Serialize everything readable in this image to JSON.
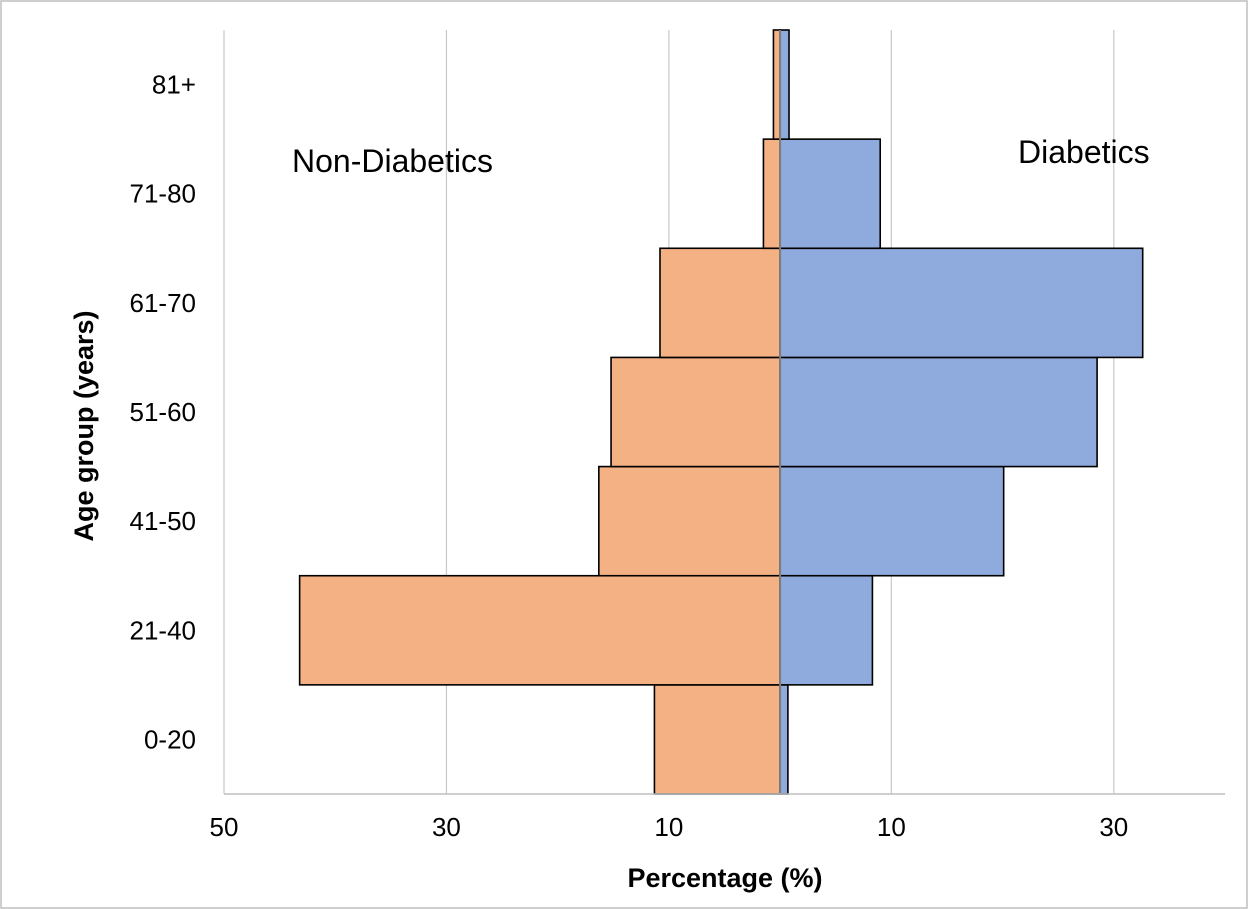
{
  "chart_data": {
    "type": "bar",
    "orientation": "horizontal",
    "layout": "population-pyramid",
    "categories": [
      "0-20",
      "21-40",
      "41-50",
      "51-60",
      "61-70",
      "71-80",
      "81+"
    ],
    "series": [
      {
        "name": "Non-Diabetics",
        "side": "left",
        "color": "#f4b183",
        "values": [
          11.3,
          43.2,
          16.3,
          15.2,
          10.8,
          1.5,
          0.6
        ]
      },
      {
        "name": "Diabetics",
        "side": "right",
        "color": "#8faadc",
        "values": [
          0.7,
          8.3,
          20.1,
          28.5,
          32.6,
          9.0,
          0.8
        ]
      }
    ],
    "xlabel": "Percentage (%)",
    "ylabel": "Age group (years)",
    "xtick_labels": [
      "50",
      "30",
      "10",
      "10",
      "30"
    ],
    "xtick_values": [
      -50,
      -30,
      -10,
      10,
      30
    ],
    "xlim": [
      -50,
      40
    ],
    "annotations": [
      "Non-Diabetics",
      "Diabetics"
    ],
    "grid": "vertical",
    "legend": "none"
  }
}
